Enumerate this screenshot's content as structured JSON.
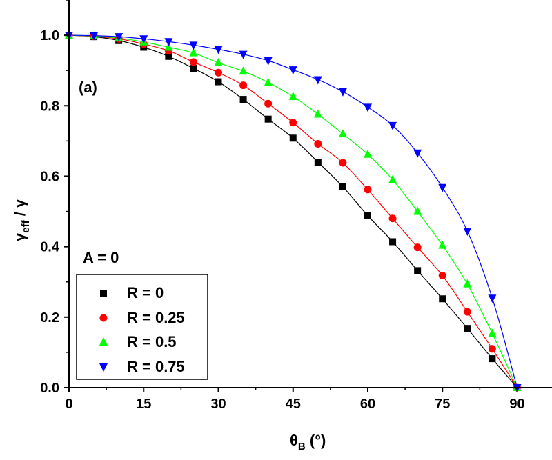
{
  "chart_data": {
    "type": "scatter",
    "title": "",
    "panel_label": "(a)",
    "annotation": "A = 0",
    "xlabel": {
      "main": "θ",
      "sub": "B",
      "suffix": " (°)"
    },
    "ylabel": {
      "main": "γ",
      "sub": "eff",
      "suffix": " / γ"
    },
    "xlim": [
      0,
      97
    ],
    "ylim": [
      0,
      1.1
    ],
    "xticks": [
      0,
      15,
      30,
      45,
      60,
      75,
      90
    ],
    "xtick_labels": [
      "0",
      "15",
      "30",
      "45",
      "60",
      "75",
      "90"
    ],
    "yticks": [
      0.0,
      0.2,
      0.4,
      0.6,
      0.8,
      1.0
    ],
    "ytick_labels": [
      "0.0",
      "0.2",
      "0.4",
      "0.6",
      "0.8",
      "1.0"
    ],
    "legend_position": "bottom-left",
    "x": [
      0,
      5,
      10,
      15,
      20,
      25,
      30,
      35,
      40,
      45,
      50,
      55,
      60,
      65,
      70,
      75,
      80,
      85,
      90
    ],
    "series": [
      {
        "name": "R = 0",
        "color": "#000000",
        "marker": "square",
        "values": [
          1.0,
          0.996,
          0.985,
          0.966,
          0.94,
          0.906,
          0.868,
          0.818,
          0.762,
          0.708,
          0.64,
          0.57,
          0.488,
          0.414,
          0.332,
          0.252,
          0.168,
          0.082,
          0.0
        ]
      },
      {
        "name": "R = 0.25",
        "color": "#ff0000",
        "marker": "circle",
        "values": [
          1.0,
          0.997,
          0.99,
          0.975,
          0.956,
          0.924,
          0.894,
          0.858,
          0.806,
          0.752,
          0.692,
          0.638,
          0.562,
          0.48,
          0.398,
          0.318,
          0.215,
          0.11,
          0.0
        ]
      },
      {
        "name": "R = 0.5",
        "color": "#00ff00",
        "marker": "triangle-up",
        "values": [
          1.0,
          0.998,
          0.992,
          0.981,
          0.966,
          0.95,
          0.922,
          0.898,
          0.866,
          0.826,
          0.776,
          0.72,
          0.662,
          0.59,
          0.5,
          0.404,
          0.294,
          0.154,
          0.0
        ]
      },
      {
        "name": "R = 0.75",
        "color": "#0000ff",
        "marker": "triangle-down",
        "values": [
          1.0,
          0.999,
          0.996,
          0.99,
          0.982,
          0.972,
          0.96,
          0.946,
          0.928,
          0.902,
          0.874,
          0.84,
          0.796,
          0.744,
          0.666,
          0.568,
          0.444,
          0.254,
          0.0
        ]
      }
    ]
  }
}
